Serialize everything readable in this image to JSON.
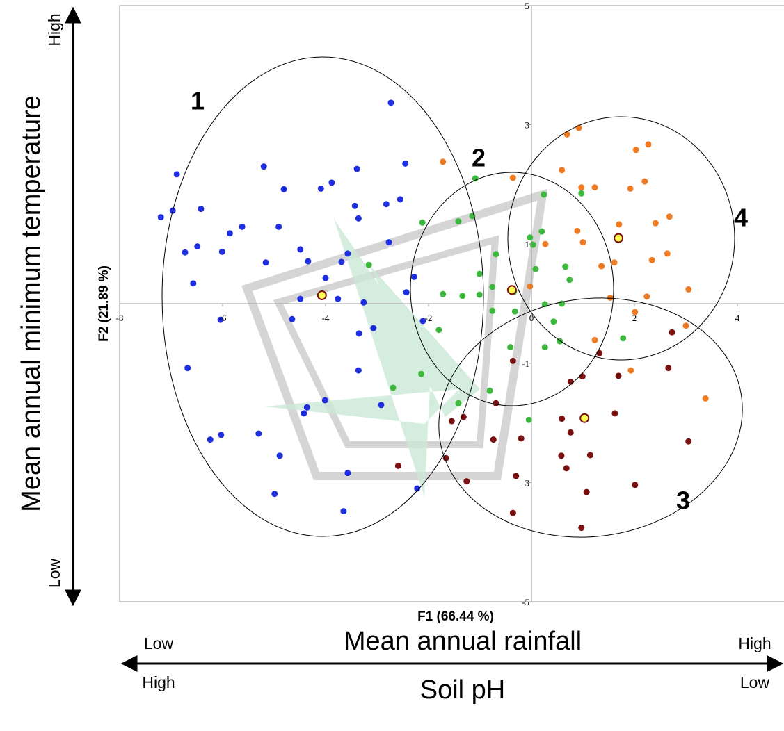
{
  "chart_data": {
    "type": "scatter",
    "x_label": "F1 (66.44 %)",
    "y_label": "F2 (21.89 %)",
    "xlim": [
      -8,
      4.9
    ],
    "ylim": [
      -5,
      5
    ],
    "xticks": [
      -8,
      -6,
      -4,
      -2,
      0,
      2,
      4
    ],
    "yticks": [
      -5,
      -3,
      -1,
      1,
      3,
      5
    ],
    "series": [
      {
        "name": "1",
        "color": "#1f2fe0",
        "x": [
          -2.73,
          -6.89,
          -5.2,
          -3.39,
          -2.45,
          -6.97,
          -7.2,
          -6.42,
          -4.81,
          -4.09,
          -3.88,
          -2.82,
          -2.55,
          -5.62,
          -4.91,
          -5.86,
          -6.49,
          -6.73,
          -6.01,
          -4.49,
          -3.36,
          -3.43,
          -2.77,
          -3.69,
          -4.34,
          -5.16,
          -4.0,
          -3.57,
          -6.57,
          -4.49,
          -3.76,
          -6.04,
          -4.65,
          -3.26,
          -3.07,
          -2.43,
          -3.35,
          -2.28,
          -6.68,
          -3.36,
          -4.36,
          -4.01,
          -2.92,
          -4.42,
          -6.24,
          -6.03,
          -5.3,
          -4.89,
          -3.57,
          -4.99,
          -2.22,
          -3.65,
          -2.11
        ],
        "y": [
          3.37,
          2.17,
          2.3,
          2.26,
          2.35,
          1.56,
          1.45,
          1.59,
          1.92,
          1.93,
          2.03,
          1.67,
          1.75,
          1.29,
          1.29,
          1.18,
          0.96,
          0.86,
          0.87,
          0.91,
          1.43,
          1.64,
          1.03,
          0.7,
          0.71,
          0.69,
          0.43,
          0.84,
          0.34,
          0.08,
          0.08,
          -0.27,
          -0.26,
          0.02,
          -0.41,
          0.19,
          -0.5,
          0.45,
          -1.08,
          -1.12,
          -1.74,
          -1.62,
          -1.7,
          -1.84,
          -2.28,
          -2.2,
          -2.18,
          -2.55,
          -2.84,
          -3.19,
          -3.1,
          -3.48,
          -0.29
        ]
      },
      {
        "name": "2",
        "color": "#3cb83c",
        "x": [
          -1.09,
          0.24,
          -1.42,
          -1.15,
          -2.12,
          0.2,
          -0.03,
          0.03,
          -3.16,
          -0.69,
          0.66,
          0.08,
          -1.01,
          -0.76,
          0.74,
          -1.72,
          -1.34,
          -1.01,
          -0.34,
          0.26,
          0.59,
          -0.76,
          -0.32,
          0.43,
          -1.8,
          0.55,
          0.26,
          -2.14,
          -2.69,
          -0.81,
          -0.41,
          -1.42,
          -0.05,
          1.78,
          0.97
        ],
        "y": [
          2.1,
          1.83,
          1.38,
          1.47,
          1.36,
          1.21,
          1.11,
          0.99,
          0.65,
          0.83,
          0.62,
          0.58,
          0.5,
          0.28,
          0.4,
          0.16,
          0.13,
          0.15,
          0.2,
          -0.01,
          0.0,
          -0.12,
          -0.13,
          -0.3,
          -0.44,
          -0.63,
          -0.73,
          -1.18,
          -1.41,
          -1.46,
          -0.73,
          -1.67,
          -1.95,
          -0.58,
          1.85
        ]
      },
      {
        "name": "3",
        "color": "#7a0f0f",
        "x": [
          -0.36,
          2.73,
          0.76,
          0.99,
          1.69,
          2.66,
          -1.55,
          -1.32,
          -0.69,
          0.59,
          1.62,
          0.76,
          -0.74,
          -0.2,
          0.58,
          1.14,
          3.05,
          0.68,
          -0.3,
          -2.59,
          -1.66,
          -1.26,
          2.01,
          1.07,
          -0.36,
          0.97,
          1.32
        ],
        "y": [
          -0.96,
          -0.48,
          -1.31,
          -1.22,
          -1.21,
          -1.08,
          -1.97,
          -1.9,
          -1.67,
          -1.93,
          -1.84,
          -2.16,
          -2.28,
          -2.26,
          -2.55,
          -2.54,
          -2.31,
          -2.76,
          -2.89,
          -2.72,
          -2.59,
          -2.98,
          -3.04,
          -3.16,
          -3.51,
          -3.76,
          -0.83
        ]
      },
      {
        "name": "4",
        "color": "#ee7a22",
        "x": [
          -1.72,
          -0.36,
          0.69,
          0.92,
          2.03,
          2.27,
          0.59,
          0.97,
          1.23,
          1.92,
          2.2,
          2.68,
          0.89,
          1.7,
          2.41,
          1.0,
          0.27,
          1.36,
          1.61,
          2.34,
          2.64,
          -0.03,
          3.05,
          1.53,
          2.24,
          2.01,
          1.23,
          3.0,
          3.38,
          1.93
        ],
        "y": [
          2.38,
          2.11,
          2.84,
          2.95,
          2.58,
          2.67,
          2.24,
          1.95,
          1.95,
          1.93,
          2.05,
          1.46,
          1.22,
          1.33,
          1.35,
          1.03,
          1.0,
          0.63,
          0.69,
          0.73,
          0.84,
          0.29,
          0.24,
          0.1,
          0.12,
          -0.14,
          -0.61,
          -0.37,
          -1.59,
          -1.12
        ]
      }
    ],
    "centroids": {
      "color": "#ffff55",
      "x": [
        -4.07,
        -0.38,
        1.69,
        1.03
      ],
      "y": [
        0.14,
        0.23,
        1.1,
        -1.92
      ]
    },
    "side_labels": {
      "vertical": {
        "title": "Mean annual minimum temperature",
        "high": "High",
        "low": "Low"
      },
      "horizontal": {
        "top_title": "Mean annual rainfall",
        "top_low": "Low",
        "top_high": "High",
        "bottom_title": "Soil pH",
        "bottom_high": "High",
        "bottom_low": "Low"
      }
    }
  }
}
